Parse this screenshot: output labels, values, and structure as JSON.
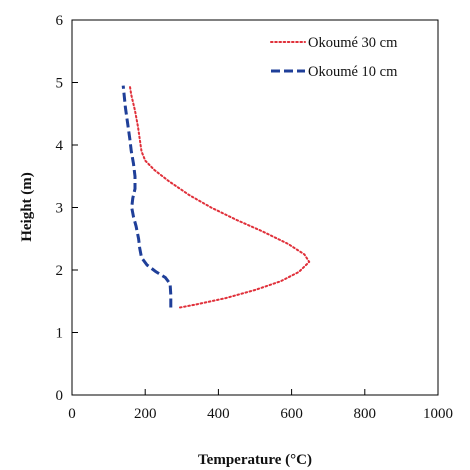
{
  "chart_data": {
    "type": "line",
    "xlabel": "Temperature (°C)",
    "ylabel": "Height (m)",
    "xlim": [
      0,
      1000
    ],
    "ylim": [
      0,
      6
    ],
    "x_ticks": [
      0,
      200,
      400,
      600,
      800,
      1000
    ],
    "y_ticks": [
      0,
      1,
      2,
      3,
      4,
      5,
      6
    ],
    "grid": false,
    "legend_position": "top-right",
    "series": [
      {
        "name": "Okoumé 30 cm",
        "color": "#e0303a",
        "style": "dotted",
        "points": [
          [
            295,
            1.4
          ],
          [
            340,
            1.45
          ],
          [
            420,
            1.55
          ],
          [
            500,
            1.68
          ],
          [
            570,
            1.82
          ],
          [
            620,
            1.97
          ],
          [
            648,
            2.13
          ],
          [
            635,
            2.25
          ],
          [
            590,
            2.42
          ],
          [
            520,
            2.62
          ],
          [
            450,
            2.8
          ],
          [
            380,
            3.0
          ],
          [
            320,
            3.2
          ],
          [
            265,
            3.42
          ],
          [
            225,
            3.6
          ],
          [
            200,
            3.75
          ],
          [
            190,
            3.9
          ],
          [
            185,
            4.1
          ],
          [
            180,
            4.3
          ],
          [
            172,
            4.55
          ],
          [
            162,
            4.8
          ],
          [
            158,
            4.95
          ]
        ]
      },
      {
        "name": "Okoumé 10 cm",
        "color": "#1f3f99",
        "style": "dashed",
        "points": [
          [
            270,
            1.4
          ],
          [
            270,
            1.6
          ],
          [
            268,
            1.78
          ],
          [
            255,
            1.88
          ],
          [
            230,
            1.97
          ],
          [
            205,
            2.08
          ],
          [
            190,
            2.2
          ],
          [
            185,
            2.35
          ],
          [
            182,
            2.5
          ],
          [
            175,
            2.7
          ],
          [
            168,
            2.85
          ],
          [
            163,
            3.0
          ],
          [
            166,
            3.15
          ],
          [
            172,
            3.3
          ],
          [
            172,
            3.5
          ],
          [
            168,
            3.7
          ],
          [
            162,
            3.9
          ],
          [
            158,
            4.1
          ],
          [
            152,
            4.35
          ],
          [
            146,
            4.6
          ],
          [
            140,
            4.95
          ]
        ]
      }
    ]
  }
}
